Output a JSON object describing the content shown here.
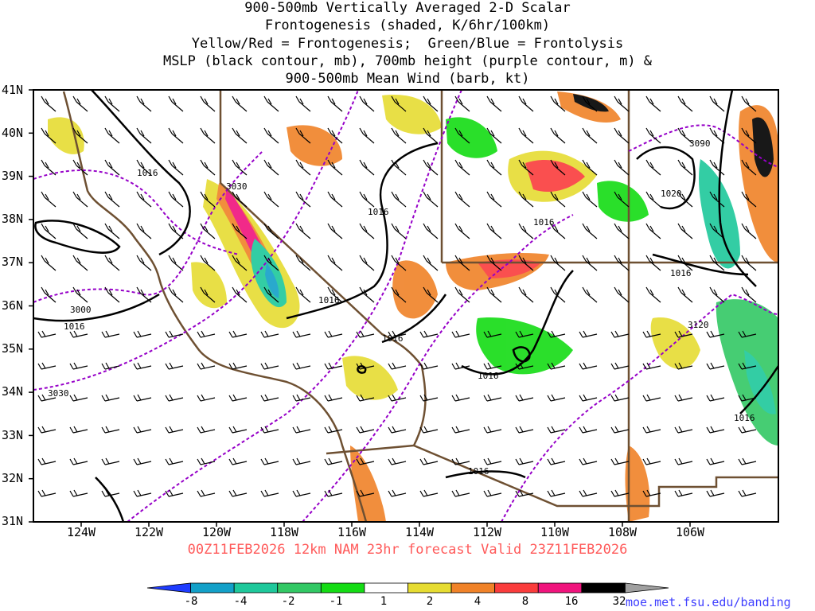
{
  "title": {
    "line1": "900-500mb Vertically Averaged 2-D Scalar",
    "line2": "Frontogenesis (shaded, K/6hr/100km)",
    "line3": "Yellow/Red = Frontogenesis;  Green/Blue = Frontolysis",
    "line4": "MSLP (black contour, mb), 700mb height (purple contour, m) &",
    "line5": "900-500mb Mean Wind (barb, kt)"
  },
  "lat_labels": [
    "41N",
    "40N",
    "39N",
    "38N",
    "37N",
    "36N",
    "35N",
    "34N",
    "33N",
    "32N",
    "31N"
  ],
  "lon_labels": [
    "124W",
    "122W",
    "120W",
    "118W",
    "116W",
    "114W",
    "112W",
    "110W",
    "108W",
    "106W"
  ],
  "contour_labels": {
    "mslp": [
      "1016",
      "1016",
      "1016",
      "1016",
      "1016",
      "1016",
      "1016",
      "1016",
      "1016",
      "1020",
      "1016"
    ],
    "height": [
      "3030",
      "3000",
      "3030",
      "3090",
      "3120"
    ]
  },
  "forecast_line": "00Z11FEB2026 12km NAM 23hr forecast Valid 23Z11FEB2026",
  "url": "moe.met.fsu.edu/banding",
  "colorbar": {
    "labels": [
      "-8",
      "-4",
      "-2",
      "-1",
      "1",
      "2",
      "4",
      "8",
      "16",
      "32"
    ],
    "colors": [
      "#1e3cff",
      "#12a0c8",
      "#1ec89b",
      "#32c864",
      "#14dc14",
      "#ffffff",
      "#e6dc32",
      "#f08228",
      "#fa3c3c",
      "#f0147d",
      "#000000",
      "#a0a0a0"
    ]
  },
  "colors": {
    "mslp": "#000000",
    "height": "#9600c8",
    "borders": "#6e5032"
  }
}
